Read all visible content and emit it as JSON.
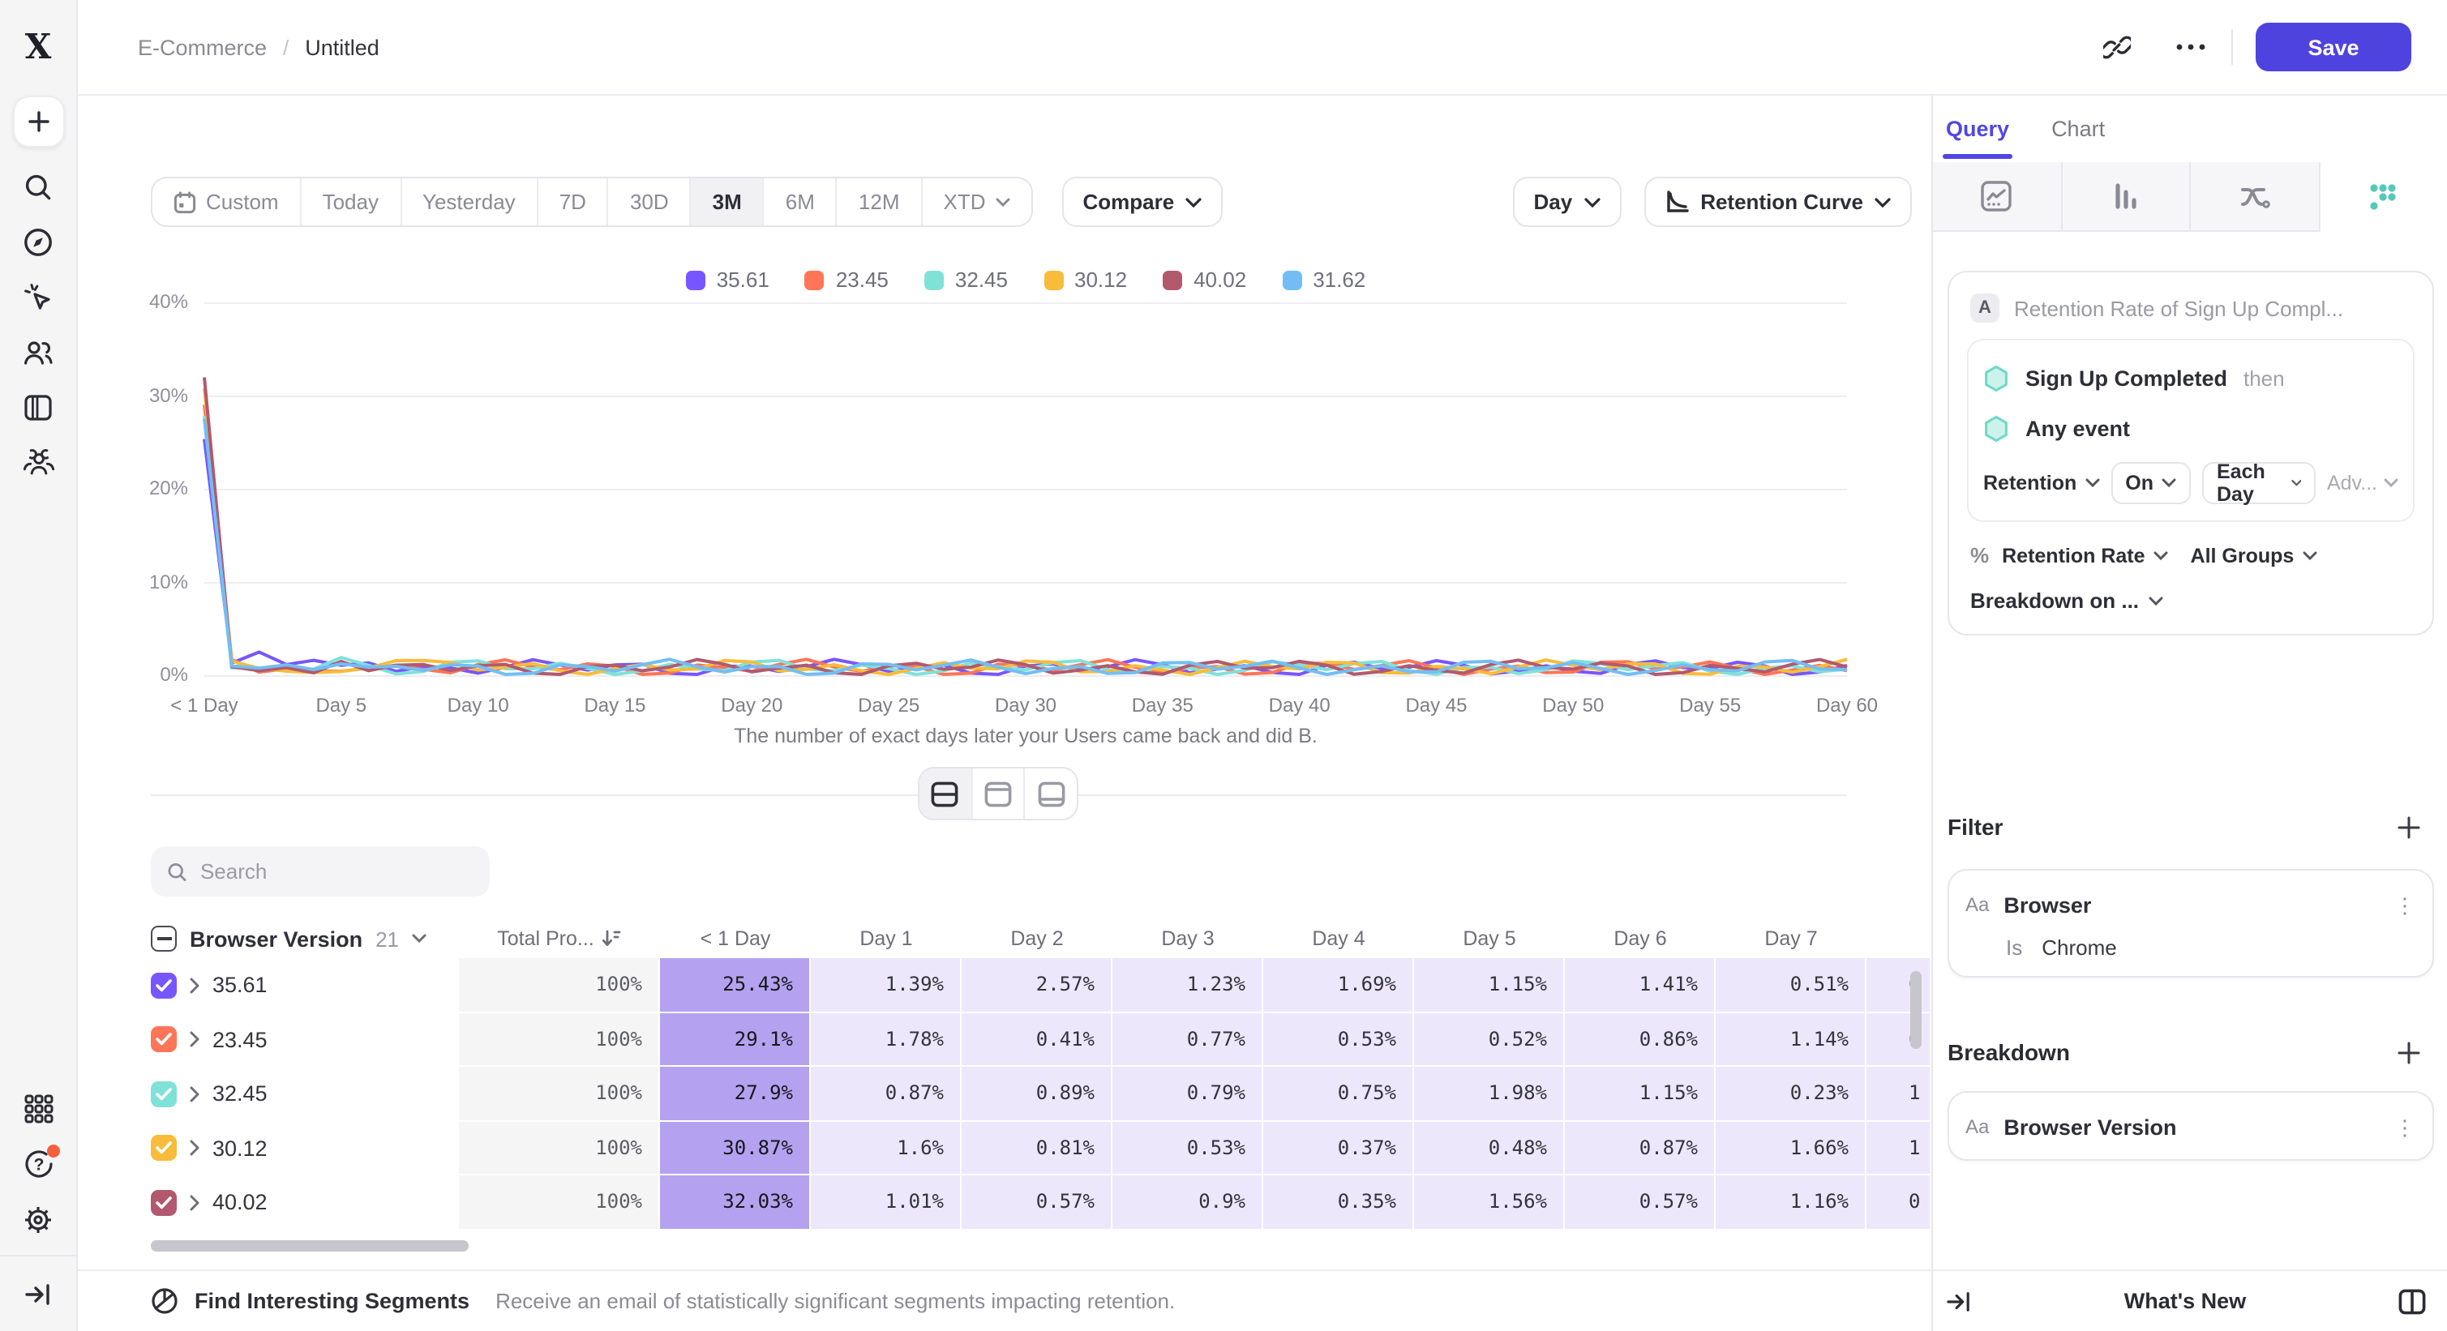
{
  "topbar": {
    "breadcrumb": [
      "E-Commerce",
      "Untitled"
    ],
    "save_label": "Save"
  },
  "sidebar": {
    "icons": [
      "mixpanel-logo",
      "create-plus",
      "search",
      "discover-compass",
      "events-cursor",
      "users",
      "boards",
      "cohorts",
      "apps-grid",
      "help",
      "settings",
      "collapse-sidebar"
    ]
  },
  "controls": {
    "date_ranges": [
      "Custom",
      "Today",
      "Yesterday",
      "7D",
      "30D",
      "3M",
      "6M",
      "12M",
      "XTD"
    ],
    "selected_range": "3M",
    "compare_label": "Compare",
    "granularity_label": "Day",
    "chart_type_label": "Retention Curve"
  },
  "chart_data": {
    "type": "line",
    "title": "",
    "xlabel_caption": "The number of exact days later your Users came back and did B.",
    "x_ticks": [
      "< 1 Day",
      "Day 5",
      "Day 10",
      "Day 15",
      "Day 20",
      "Day 25",
      "Day 30",
      "Day 35",
      "Day 40",
      "Day 45",
      "Day 50",
      "Day 55",
      "Day 60"
    ],
    "x_range_days": [
      0,
      60
    ],
    "y_ticks": [
      "0%",
      "10%",
      "20%",
      "30%",
      "40%"
    ],
    "ylim": [
      0,
      40
    ],
    "grid": "horizontal",
    "legend_position": "top-center",
    "series": [
      {
        "name": "35.61",
        "color": "#7856FF",
        "days_0_to_7": [
          25.43,
          1.39,
          2.57,
          1.23,
          1.69,
          1.15,
          1.41,
          0.51
        ]
      },
      {
        "name": "23.45",
        "color": "#FF7557",
        "days_0_to_7": [
          29.1,
          1.78,
          0.41,
          0.77,
          0.53,
          0.52,
          0.86,
          1.14
        ]
      },
      {
        "name": "32.45",
        "color": "#80E1D9",
        "days_0_to_7": [
          27.9,
          0.87,
          0.89,
          0.79,
          0.75,
          1.98,
          1.15,
          0.23
        ]
      },
      {
        "name": "30.12",
        "color": "#F8BC3B",
        "days_0_to_7": [
          30.87,
          1.6,
          0.81,
          0.53,
          0.37,
          0.48,
          0.87,
          1.66
        ]
      },
      {
        "name": "40.02",
        "color": "#B2596E",
        "days_0_to_7": [
          32.03,
          1.01,
          0.57,
          0.9,
          0.35,
          1.56,
          0.57,
          1.16
        ]
      },
      {
        "name": "31.62",
        "color": "#72BEF4",
        "days_0_to_7": [
          27.6,
          1.1,
          0.85,
          1.2,
          0.7,
          1.3,
          0.95,
          1.05
        ]
      }
    ],
    "days_8_to_60_value_range": [
      0.2,
      2.0
    ]
  },
  "table": {
    "search_placeholder": "Search",
    "group_column_label": "Browser Version",
    "group_count": "21",
    "total_column_label": "Total Pro...",
    "day_columns": [
      "< 1 Day",
      "Day 1",
      "Day 2",
      "Day 3",
      "Day 4",
      "Day 5",
      "Day 6",
      "Day 7"
    ],
    "rows": [
      {
        "label": "35.61",
        "color": "#7856FF",
        "total": "100%",
        "cells": [
          "25.43%",
          "1.39%",
          "2.57%",
          "1.23%",
          "1.69%",
          "1.15%",
          "1.41%",
          "0.51%"
        ],
        "cut": "0"
      },
      {
        "label": "23.45",
        "color": "#FF7557",
        "total": "100%",
        "cells": [
          "29.1%",
          "1.78%",
          "0.41%",
          "0.77%",
          "0.53%",
          "0.52%",
          "0.86%",
          "1.14%"
        ],
        "cut": "0"
      },
      {
        "label": "32.45",
        "color": "#80E1D9",
        "total": "100%",
        "cells": [
          "27.9%",
          "0.87%",
          "0.89%",
          "0.79%",
          "0.75%",
          "1.98%",
          "1.15%",
          "0.23%"
        ],
        "cut": "1"
      },
      {
        "label": "30.12",
        "color": "#F8BC3B",
        "total": "100%",
        "cells": [
          "30.87%",
          "1.6%",
          "0.81%",
          "0.53%",
          "0.37%",
          "0.48%",
          "0.87%",
          "1.66%"
        ],
        "cut": "1"
      },
      {
        "label": "40.02",
        "color": "#B2596E",
        "total": "100%",
        "cells": [
          "32.03%",
          "1.01%",
          "0.57%",
          "0.9%",
          "0.35%",
          "1.56%",
          "0.57%",
          "1.16%"
        ],
        "cut": "0"
      }
    ]
  },
  "segments_bar": {
    "title": "Find Interesting Segments",
    "description": "Receive an email of statistically significant segments impacting retention."
  },
  "panel": {
    "tabs": [
      "Query",
      "Chart"
    ],
    "active_tab": "Query",
    "query": {
      "label_chip": "A",
      "name": "Retention Rate of Sign Up Compl...",
      "event_1": "Sign Up Completed",
      "then_label": "then",
      "event_2": "Any event",
      "retention_label": "Retention",
      "on_label": "On",
      "interval_label": "Each Day",
      "advanced_label": "Adv...",
      "percent_sign": "%",
      "measure_label": "Retention Rate",
      "groups_label": "All Groups",
      "breakdown_on_label": "Breakdown on ..."
    },
    "filter": {
      "heading": "Filter",
      "property_type": "Aa",
      "property": "Browser",
      "operator": "Is",
      "value": "Chrome"
    },
    "breakdown": {
      "heading": "Breakdown",
      "property_type": "Aa",
      "property": "Browser Version"
    },
    "footer": {
      "whats_new": "What's New"
    }
  },
  "colors": {
    "accent_purple": "#4f43e0",
    "heat_strong": "#b4a2f0",
    "heat_light": "#ece7fb",
    "notification_orange": "#f4603e",
    "hexagon_teal": "#80E1D9"
  }
}
